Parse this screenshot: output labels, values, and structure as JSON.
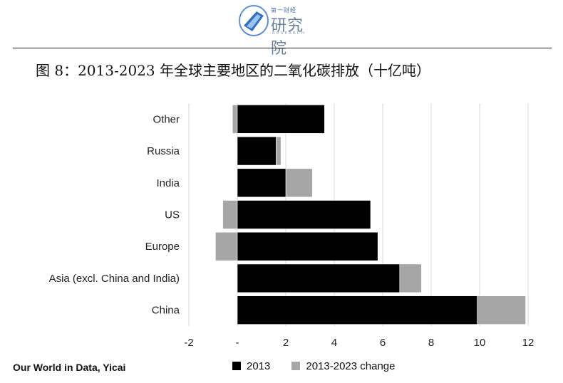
{
  "header": {
    "logo_top": "第一财经",
    "logo_main": "研究院",
    "logo_sub": "RESEARCH"
  },
  "title": "图 8：2013-2023 年全球主要地区的二氧化碳排放（十亿吨）",
  "source": "Our World in Data, Yicai",
  "colors": {
    "base": "#000000",
    "change": "#a6a6a6",
    "grid": "#d9d9d9"
  },
  "chart_data": {
    "type": "bar",
    "orientation": "horizontal",
    "stacked": true,
    "categories": [
      "Other",
      "Russia",
      "India",
      "US",
      "Europe",
      "Asia (excl. China and India)",
      "China"
    ],
    "series": [
      {
        "name": "2013",
        "values": [
          3.6,
          1.6,
          2.0,
          5.5,
          5.8,
          6.7,
          9.9
        ]
      },
      {
        "name": "2013-2023 change",
        "values": [
          -0.2,
          0.2,
          1.1,
          -0.6,
          -0.9,
          0.9,
          2.0
        ]
      }
    ],
    "xlim": [
      -2,
      12
    ],
    "xticks": [
      -2,
      0,
      2,
      4,
      6,
      8,
      10,
      12
    ],
    "xtick_labels": [
      "-2",
      "-",
      "2",
      "4",
      "6",
      "8",
      "10",
      "12"
    ],
    "grid": "vertical",
    "legend_position": "bottom"
  }
}
